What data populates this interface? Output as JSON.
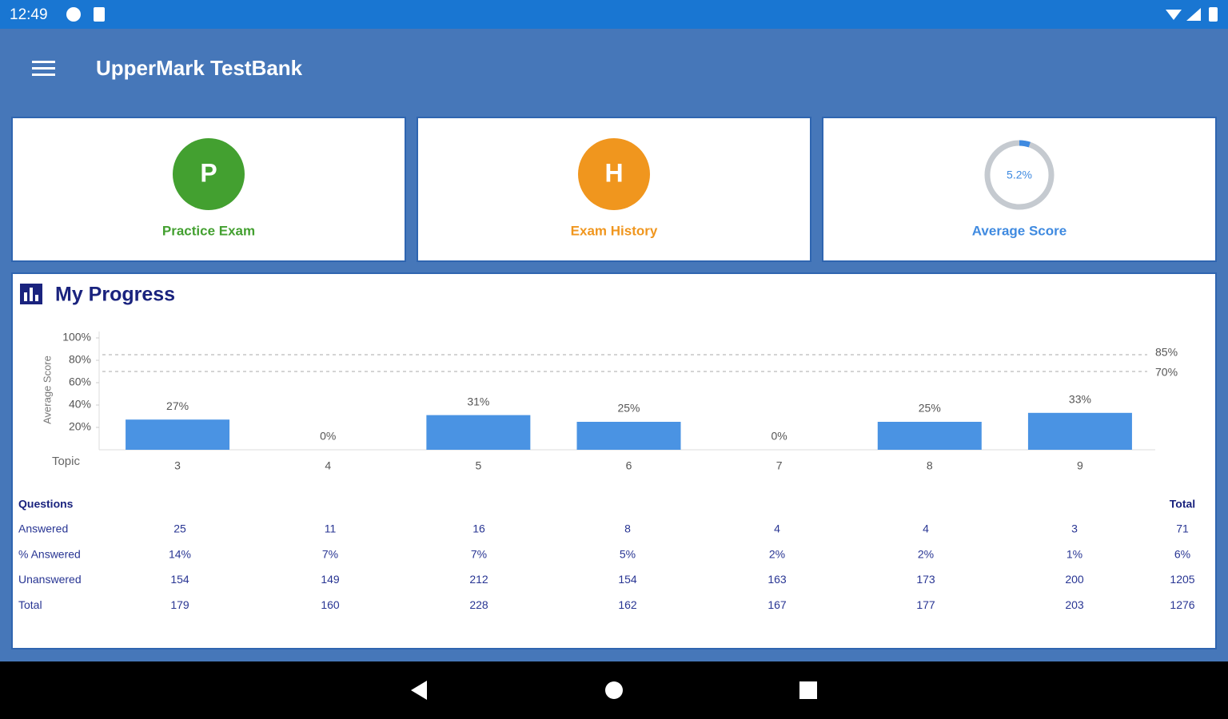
{
  "status_bar": {
    "time": "12:49"
  },
  "app_bar": {
    "title": "UpperMark TestBank"
  },
  "cards": [
    {
      "letter": "P",
      "label": "Practice Exam"
    },
    {
      "letter": "H",
      "label": "Exam History"
    },
    {
      "value": 5.2,
      "value_label": "5.2%",
      "label": "Average Score"
    }
  ],
  "progress": {
    "title": "My Progress",
    "chart_data": {
      "type": "bar",
      "y_label": "Average Score",
      "x_label": "Topic",
      "categories": [
        "3",
        "4",
        "5",
        "6",
        "7",
        "8",
        "9"
      ],
      "values": [
        27,
        0,
        31,
        25,
        0,
        25,
        33
      ],
      "value_labels": [
        "27%",
        "0%",
        "31%",
        "25%",
        "0%",
        "25%",
        "33%"
      ],
      "color": "#4a93e3",
      "ylim": [
        0,
        100
      ],
      "yticks": [
        {
          "value": 20,
          "label": "20%"
        },
        {
          "value": 40,
          "label": "40%"
        },
        {
          "value": 60,
          "label": "60%"
        },
        {
          "value": 80,
          "label": "80%"
        },
        {
          "value": 100,
          "label": "100%"
        }
      ],
      "reference_lines": [
        {
          "value": 85,
          "label": "85%"
        },
        {
          "value": 70,
          "label": "70%"
        }
      ]
    },
    "table": {
      "header": [
        "Questions",
        "Total"
      ],
      "rows": [
        {
          "label": "Answered",
          "cells": [
            25,
            11,
            16,
            8,
            4,
            4,
            3,
            71
          ]
        },
        {
          "label": "% Answered",
          "cells": [
            "14%",
            "7%",
            "7%",
            "5%",
            "2%",
            "2%",
            "1%",
            "6%"
          ]
        },
        {
          "label": "Unanswered",
          "cells": [
            154,
            149,
            212,
            154,
            163,
            173,
            200,
            1205
          ]
        },
        {
          "label": "Total",
          "cells": [
            179,
            160,
            228,
            162,
            167,
            177,
            203,
            1276
          ]
        }
      ]
    }
  }
}
